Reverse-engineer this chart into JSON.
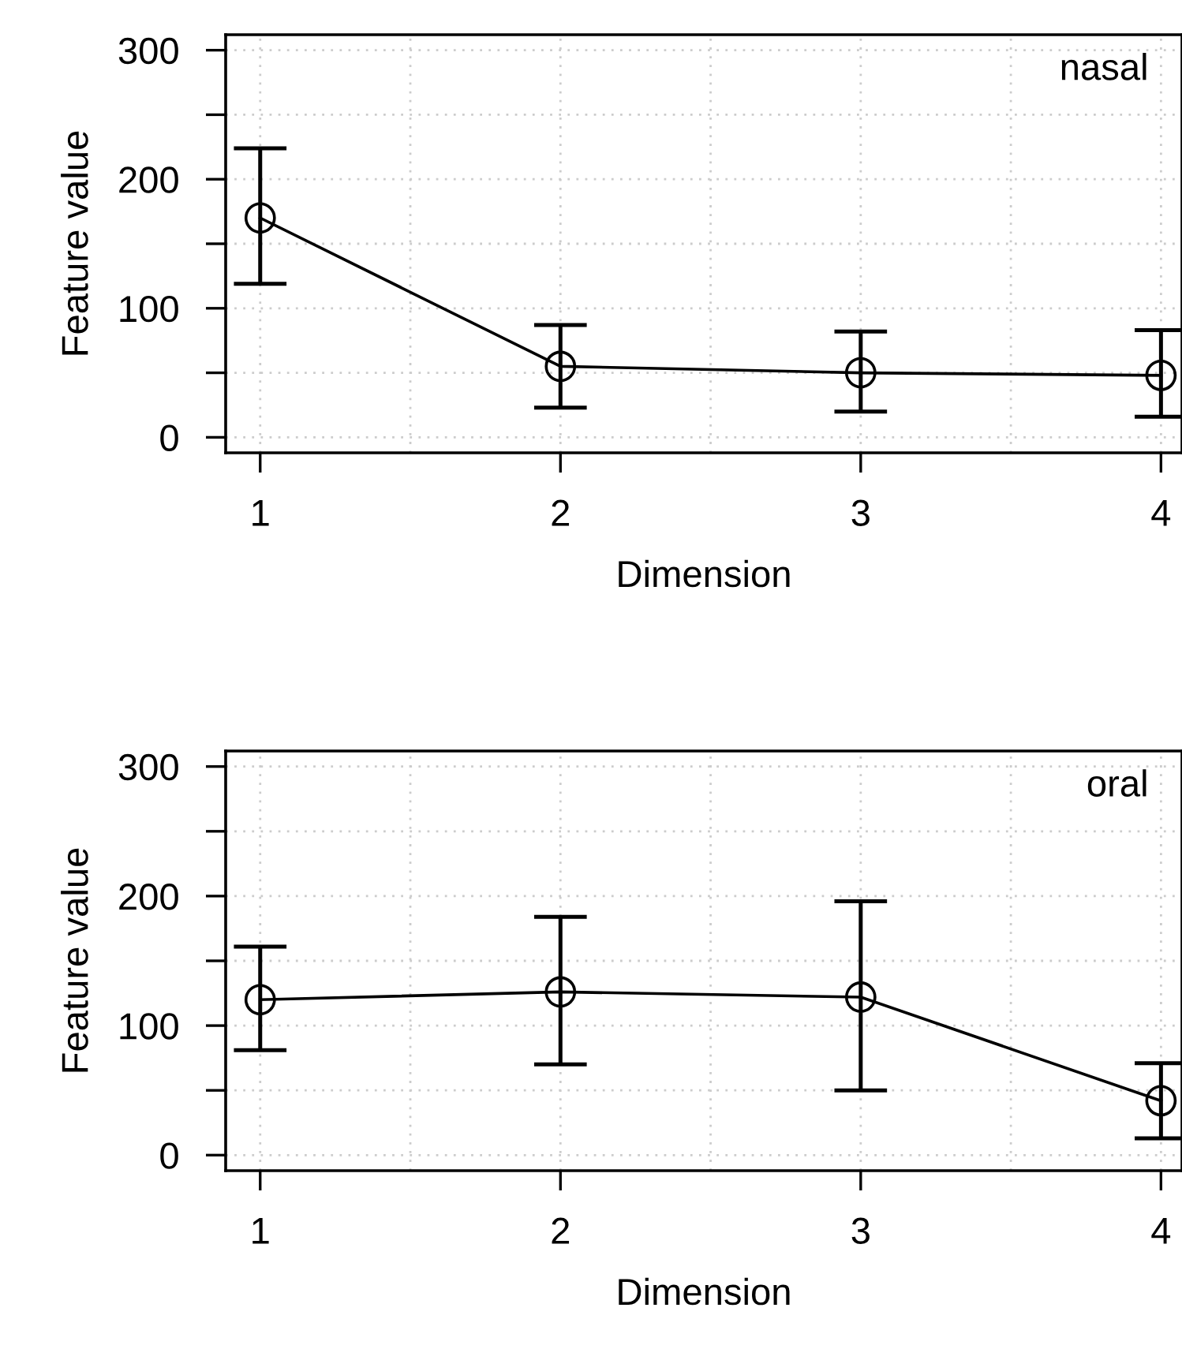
{
  "chart_data": [
    {
      "type": "line",
      "xlabel": "Dimension",
      "ylabel": "Feature value",
      "x": [
        1,
        2,
        3,
        4
      ],
      "xlim": [
        0.885,
        4.07
      ],
      "ylim": [
        -12,
        312
      ],
      "xticks": [
        1,
        {
          "value": 1.5,
          "label": null
        },
        2,
        {
          "value": 2.5,
          "label": null
        },
        3,
        {
          "value": 3.5,
          "label": null
        },
        4
      ],
      "yticks": [
        0,
        {
          "value": 50,
          "label": null
        },
        100,
        {
          "value": 150,
          "label": null
        },
        200,
        {
          "value": 250,
          "label": null
        },
        300
      ],
      "color": "#000000",
      "values": [
        170,
        55,
        50,
        48
      ],
      "errors": [
        [
          119,
          224
        ],
        [
          23,
          87
        ],
        [
          20,
          82
        ],
        [
          16,
          83
        ]
      ],
      "marker": "circle",
      "line_style": "solid",
      "grid": true,
      "annotations": [
        "nasal"
      ]
    },
    {
      "type": "line",
      "xlabel": "Dimension",
      "ylabel": "Feature value",
      "x": [
        1,
        2,
        3,
        4
      ],
      "xlim": [
        0.885,
        4.07
      ],
      "ylim": [
        -12,
        312
      ],
      "xticks": [
        1,
        {
          "value": 1.5,
          "label": null
        },
        2,
        {
          "value": 2.5,
          "label": null
        },
        3,
        {
          "value": 3.5,
          "label": null
        },
        4
      ],
      "yticks": [
        0,
        {
          "value": 50,
          "label": null
        },
        100,
        {
          "value": 150,
          "label": null
        },
        200,
        {
          "value": 250,
          "label": null
        },
        300
      ],
      "color": "#000000",
      "values": [
        120,
        126,
        122,
        42
      ],
      "errors": [
        [
          81,
          161
        ],
        [
          70,
          184
        ],
        [
          50,
          196
        ],
        [
          13,
          71
        ]
      ],
      "marker": "circle",
      "line_style": "solid",
      "grid": true,
      "annotations": [
        "oral"
      ]
    }
  ]
}
